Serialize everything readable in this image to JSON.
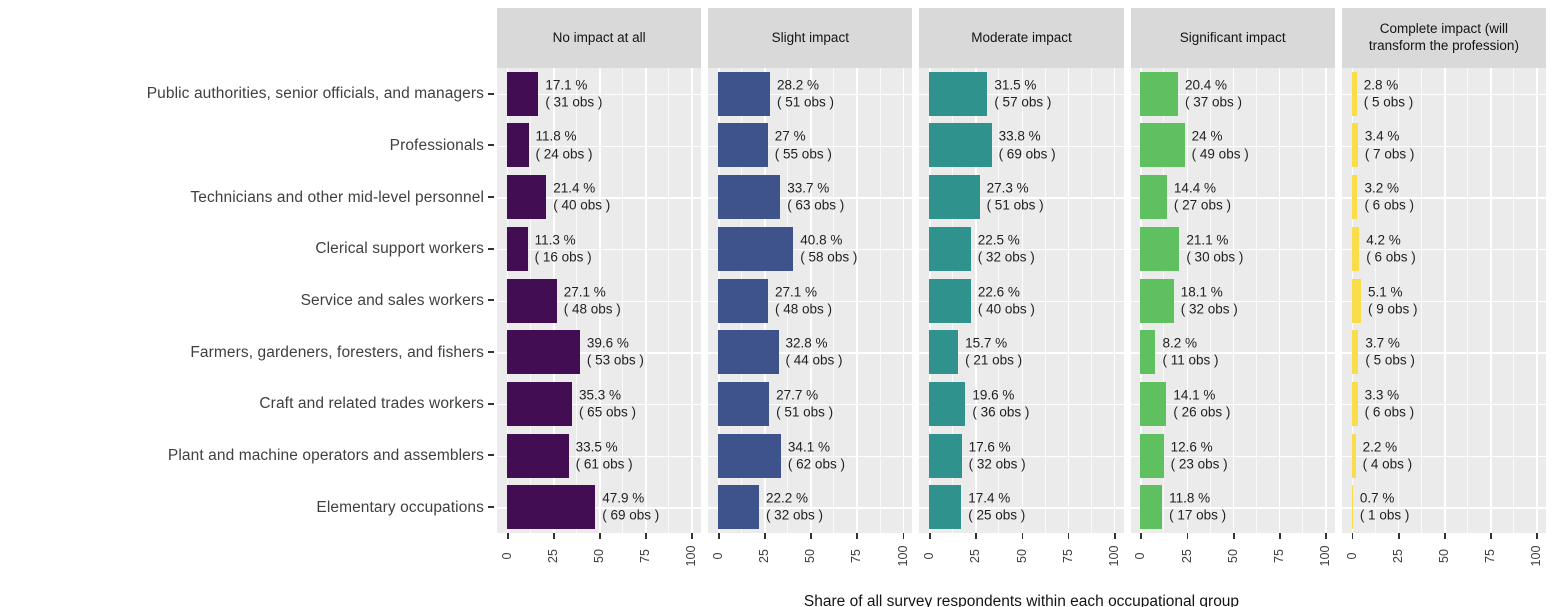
{
  "chart_data": {
    "type": "bar",
    "orientation": "horizontal",
    "faceted": true,
    "xlabel": "Share of all survey respondents within each occupational group",
    "xlim": [
      0,
      100
    ],
    "x_major_ticks": [
      0,
      25,
      50,
      75,
      100
    ],
    "x_minor_gridlines": [
      12.5,
      37.5,
      62.5,
      87.5
    ],
    "grid": "white-on-gray",
    "panel_background": "#ebebeb",
    "strip_background": "#d9d9d9",
    "value_label_format": "{value} % / ( {obs} obs )",
    "categories": [
      "Public authorities, senior officials, and managers",
      "Professionals",
      "Technicians and other mid-level personnel",
      "Clerical support workers",
      "Service and sales workers",
      "Farmers, gardeners, foresters, and fishers",
      "Craft and related trades workers",
      "Plant and machine operators and assemblers",
      "Elementary occupations"
    ],
    "facets": [
      {
        "label": "No impact at all",
        "color": "#430d54",
        "values": [
          17.1,
          11.8,
          21.4,
          11.3,
          27.1,
          39.6,
          35.3,
          33.5,
          47.9
        ],
        "obs": [
          31,
          24,
          40,
          16,
          48,
          53,
          65,
          61,
          69
        ]
      },
      {
        "label": "Slight impact",
        "color": "#3e538c",
        "values": [
          28.2,
          27,
          33.7,
          40.8,
          27.1,
          32.8,
          27.7,
          34.1,
          22.2
        ],
        "obs": [
          51,
          55,
          63,
          58,
          48,
          44,
          51,
          62,
          32
        ]
      },
      {
        "label": "Moderate impact",
        "color": "#2f928c",
        "values": [
          31.5,
          33.8,
          27.3,
          22.5,
          22.6,
          15.7,
          19.6,
          17.6,
          17.4
        ],
        "obs": [
          57,
          69,
          51,
          32,
          40,
          21,
          36,
          32,
          25
        ]
      },
      {
        "label": "Significant impact",
        "color": "#5ec05e",
        "values": [
          20.4,
          24,
          14.4,
          21.1,
          18.1,
          8.2,
          14.1,
          12.6,
          11.8
        ],
        "obs": [
          37,
          49,
          27,
          30,
          32,
          11,
          26,
          23,
          17
        ]
      },
      {
        "label": "Complete impact (will transform the profession)",
        "color": "#f9dd4a",
        "values": [
          2.8,
          3.4,
          3.2,
          4.2,
          5.1,
          3.7,
          3.3,
          2.2,
          0.7
        ],
        "obs": [
          5,
          7,
          6,
          6,
          9,
          5,
          6,
          4,
          1
        ]
      }
    ]
  },
  "axis": {
    "tick_labels": [
      "0",
      "25",
      "50",
      "75",
      "100"
    ],
    "title": "Share of all survey respondents within each occupational group"
  }
}
